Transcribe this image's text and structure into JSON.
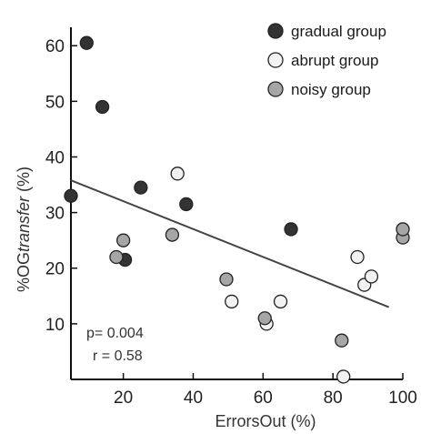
{
  "chart_data": {
    "type": "scatter",
    "xlabel": "ErrorsOut (%)",
    "ylabel_prefix": "%OG",
    "ylabel_italic": "transfer",
    "ylabel_suffix": " (%)",
    "xlim": [
      5,
      100
    ],
    "ylim": [
      0,
      62
    ],
    "x_ticks": [
      20,
      40,
      60,
      80,
      100
    ],
    "y_ticks": [
      10,
      20,
      30,
      40,
      50,
      60
    ],
    "legend": {
      "position": "top-right"
    },
    "series": [
      {
        "name": "gradual group",
        "fill": "#333333",
        "points": [
          {
            "x": 5,
            "y": 33
          },
          {
            "x": 9.5,
            "y": 60.5
          },
          {
            "x": 14,
            "y": 49
          },
          {
            "x": 20.5,
            "y": 21.5
          },
          {
            "x": 25,
            "y": 34.5
          },
          {
            "x": 38,
            "y": 31.5
          },
          {
            "x": 68,
            "y": 27
          }
        ]
      },
      {
        "name": "abrupt group",
        "fill": "#f2f2f2",
        "points": [
          {
            "x": 35.5,
            "y": 37
          },
          {
            "x": 51,
            "y": 14
          },
          {
            "x": 61,
            "y": 10
          },
          {
            "x": 65,
            "y": 14
          },
          {
            "x": 83,
            "y": 0.5
          },
          {
            "x": 87,
            "y": 22
          },
          {
            "x": 89,
            "y": 17
          },
          {
            "x": 91,
            "y": 18.5
          }
        ]
      },
      {
        "name": "noisy group",
        "fill": "#a6a6a6",
        "points": [
          {
            "x": 18,
            "y": 22
          },
          {
            "x": 20,
            "y": 25
          },
          {
            "x": 34,
            "y": 26
          },
          {
            "x": 49.5,
            "y": 18
          },
          {
            "x": 60.5,
            "y": 11
          },
          {
            "x": 82.5,
            "y": 7
          },
          {
            "x": 100,
            "y": 25.5
          },
          {
            "x": 100,
            "y": 27
          }
        ]
      }
    ],
    "regression": {
      "x1": 5,
      "y1": 35.8,
      "x2": 96,
      "y2": 13
    },
    "annotations": {
      "p": "p= 0.004",
      "r": "r = 0.58"
    }
  }
}
